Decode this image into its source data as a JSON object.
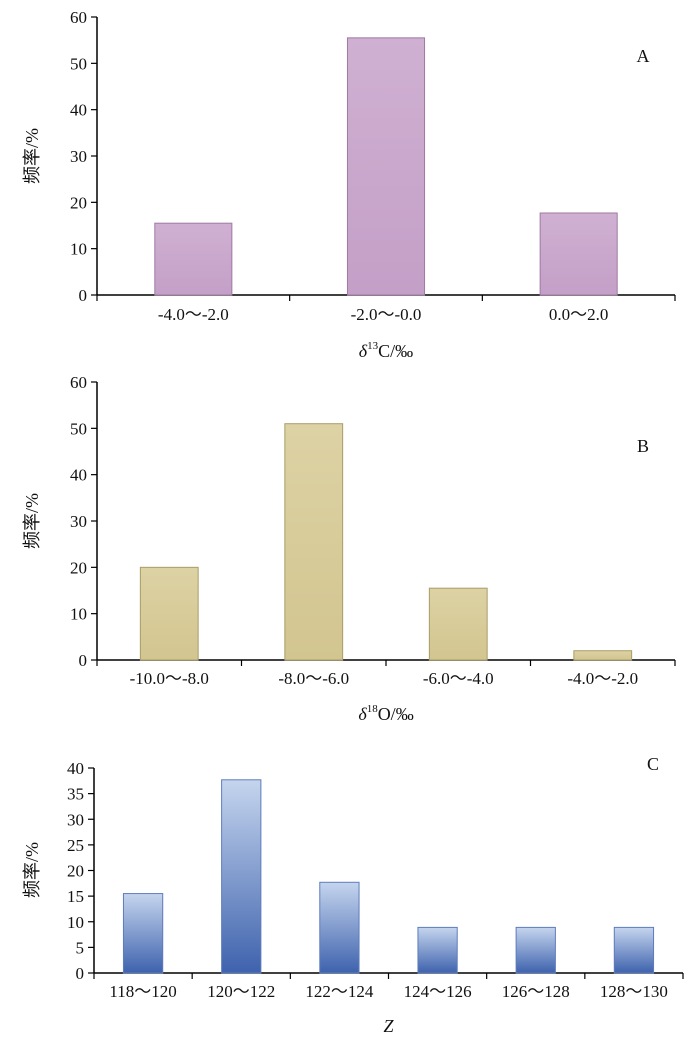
{
  "chart_data": [
    {
      "type": "bar",
      "panel_label": "A",
      "categories": [
        "-4.0～-2.0",
        "-2.0～-0.0",
        "0.0～2.0"
      ],
      "values": [
        15.5,
        55.5,
        17.7
      ],
      "ylabel": "频率/%",
      "xlabel_symbol": "δ",
      "xlabel_superscript": "13",
      "xlabel_rest": "C/‰",
      "ylim": [
        0,
        60
      ],
      "yticks": [
        0,
        10,
        20,
        30,
        40,
        50,
        60
      ],
      "grid": false,
      "color": "#c9a6cc"
    },
    {
      "type": "bar",
      "panel_label": "B",
      "categories": [
        "-10.0～-8.0",
        "-8.0～-6.0",
        "-6.0～-4.0",
        "-4.0～-2.0"
      ],
      "values": [
        20,
        51,
        15.5,
        2
      ],
      "ylabel": "频率/%",
      "xlabel_symbol": "δ",
      "xlabel_superscript": "18",
      "xlabel_rest": "O/‰",
      "ylim": [
        0,
        60
      ],
      "yticks": [
        0,
        10,
        20,
        30,
        40,
        50,
        60
      ],
      "grid": false,
      "color": "#d9cd9c"
    },
    {
      "type": "bar",
      "panel_label": "C",
      "categories": [
        "118～120",
        "120～122",
        "122～124",
        "124～126",
        "126～128",
        "128～130"
      ],
      "values": [
        15.5,
        37.7,
        17.7,
        8.9,
        8.9,
        8.9
      ],
      "ylabel": "频率/%",
      "xlabel": "Z",
      "ylim": [
        0,
        40
      ],
      "yticks": [
        0,
        5,
        10,
        15,
        20,
        25,
        30,
        35,
        40
      ],
      "grid": false,
      "color": "#7d96c8"
    }
  ]
}
